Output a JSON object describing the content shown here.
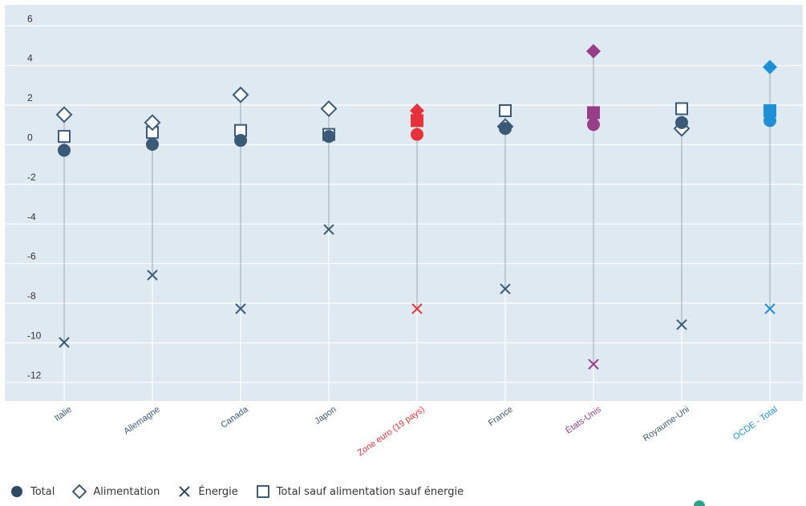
{
  "chart_data": {
    "type": "scatter",
    "categories": [
      "Italie",
      "Allemagne",
      "Canada",
      "Japon",
      "Zone euro (19 pays)",
      "France",
      "États-Unis",
      "Royaume-Uni",
      "OCDE - Total"
    ],
    "category_colors": [
      "#3a5a78",
      "#3a5a78",
      "#3a5a78",
      "#3a5a78",
      "#e8313a",
      "#3a5a78",
      "#983d88",
      "#3a5a78",
      "#1e90d8"
    ],
    "ylim": [
      -13,
      7
    ],
    "yticks": [
      6,
      4,
      2,
      0,
      -2,
      -4,
      -6,
      -8,
      -10,
      -12
    ],
    "grid": true,
    "legend_position": "bottom-left",
    "series": [
      {
        "name": "Total",
        "marker": "circle",
        "values": [
          -0.3,
          0.0,
          0.2,
          0.4,
          0.5,
          0.8,
          1.0,
          1.1,
          1.2
        ]
      },
      {
        "name": "Alimentation",
        "marker": "diamond",
        "values": [
          1.5,
          1.1,
          2.5,
          1.8,
          1.7,
          0.9,
          4.7,
          0.8,
          3.9
        ]
      },
      {
        "name": "Énergie",
        "marker": "x",
        "values": [
          -10.0,
          -6.6,
          -8.3,
          -4.3,
          -8.3,
          -7.3,
          -11.1,
          -9.1,
          -8.3
        ]
      },
      {
        "name": "Total sauf alimentation sauf énergie",
        "marker": "square",
        "values": [
          0.4,
          0.6,
          0.7,
          0.5,
          1.2,
          1.7,
          1.6,
          1.8,
          1.7
        ]
      }
    ]
  },
  "legend": {
    "items": [
      {
        "label": "Total",
        "marker": "circle"
      },
      {
        "label": "Alimentation",
        "marker": "diamond"
      },
      {
        "label": "Énergie",
        "marker": "x"
      },
      {
        "label": "Total sauf alimentation sauf énergie",
        "marker": "square"
      }
    ]
  },
  "colors": {
    "plot_background": "#dfe9f1",
    "grid_line": "#ffffff",
    "stem": "#9aabba",
    "tick_text": "#333333"
  }
}
